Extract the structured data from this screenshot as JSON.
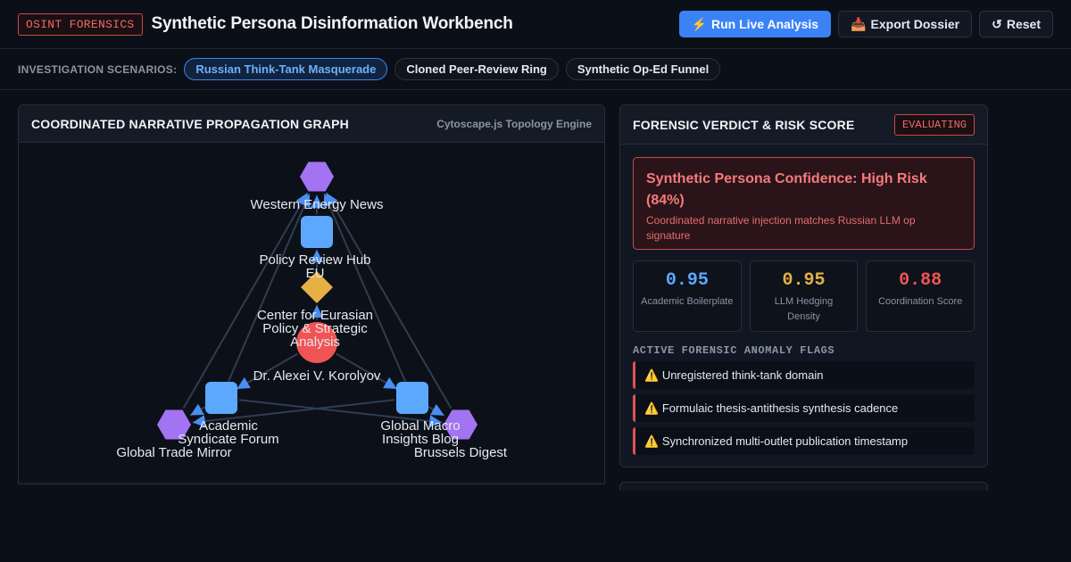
{
  "app": {
    "badge": "OSINT FORENSICS",
    "title": "Synthetic Persona Disinformation Workbench",
    "actions": {
      "run": {
        "icon": "lightning-icon",
        "glyph": "⚡",
        "label": "Run Live Analysis"
      },
      "export": {
        "icon": "inbox-tray-icon",
        "glyph": "📥",
        "label": "Export Dossier"
      },
      "reset": {
        "icon": "reset-icon",
        "glyph": "↺",
        "label": "Reset"
      }
    }
  },
  "scenarios": {
    "label": "INVESTIGATION SCENARIOS:",
    "items": [
      {
        "label": "Russian Think-Tank Masquerade",
        "active": true
      },
      {
        "label": "Cloned Peer-Review Ring",
        "active": false
      },
      {
        "label": "Synthetic Op-Ed Funnel",
        "active": false
      }
    ]
  },
  "graph": {
    "title": "COORDINATED NARRATIVE PROPAGATION GRAPH",
    "engine": "Cytoscape.js Topology Engine",
    "colors": {
      "outlet": "#a374f2",
      "hub": "#5ca8ff",
      "thinktank": "#e6b043",
      "origin": "#f15454",
      "edge": "#2f3d52",
      "arrow": "#4a8ef0"
    },
    "nodes": [
      {
        "id": "wen",
        "label": "Western Energy News",
        "shape": "hexagon",
        "role": "outlet"
      },
      {
        "id": "prh",
        "label": "Policy Review Hub EU",
        "shape": "rounded-square",
        "role": "hub"
      },
      {
        "id": "cep",
        "label": "Center for Eurasian Policy & Strategic Analysis",
        "shape": "diamond",
        "role": "thinktank"
      },
      {
        "id": "dak",
        "label": "Dr. Alexei V. Korolyov",
        "shape": "circle",
        "role": "origin"
      },
      {
        "id": "asf",
        "label": "Academic Syndicate Forum",
        "shape": "rounded-square",
        "role": "hub"
      },
      {
        "id": "gmi",
        "label": "Global Macro Insights Blog",
        "shape": "rounded-square",
        "role": "hub"
      },
      {
        "id": "gtm",
        "label": "Global Trade Mirror",
        "shape": "hexagon",
        "role": "outlet"
      },
      {
        "id": "bd",
        "label": "Brussels Digest",
        "shape": "hexagon",
        "role": "outlet"
      }
    ],
    "edges": [
      [
        "dak",
        "cep"
      ],
      [
        "cep",
        "prh"
      ],
      [
        "prh",
        "wen"
      ],
      [
        "dak",
        "asf"
      ],
      [
        "dak",
        "gmi"
      ],
      [
        "asf",
        "gtm"
      ],
      [
        "asf",
        "bd"
      ],
      [
        "gmi",
        "gtm"
      ],
      [
        "gmi",
        "bd"
      ],
      [
        "asf",
        "wen"
      ],
      [
        "gmi",
        "wen"
      ],
      [
        "gtm",
        "wen"
      ],
      [
        "bd",
        "wen"
      ]
    ]
  },
  "verdict": {
    "title": "FORENSIC VERDICT & RISK SCORE",
    "status": "EVALUATING",
    "headline": "Synthetic Persona Confidence: High Risk (84%)",
    "confidence": 0.84,
    "description": "Coordinated narrative injection matches Russian LLM op signature",
    "metrics": [
      {
        "value": "0.95",
        "label": "Academic Boilerplate",
        "color": "#5ca8ff"
      },
      {
        "value": "0.95",
        "label": "LLM Hedging Density",
        "color": "#e6b043"
      },
      {
        "value": "0.88",
        "label": "Coordination Score",
        "color": "#f15454"
      }
    ],
    "flags_title": "ACTIVE FORENSIC ANOMALY FLAGS",
    "flags": [
      {
        "icon": "warning-icon",
        "glyph": "⚠️",
        "text": "Unregistered think-tank domain"
      },
      {
        "icon": "warning-icon",
        "glyph": "⚠️",
        "text": "Formulaic thesis-antithesis synthesis cadence"
      },
      {
        "icon": "warning-icon",
        "glyph": "⚠️",
        "text": "Synchronized multi-outlet publication timestamp"
      }
    ]
  }
}
